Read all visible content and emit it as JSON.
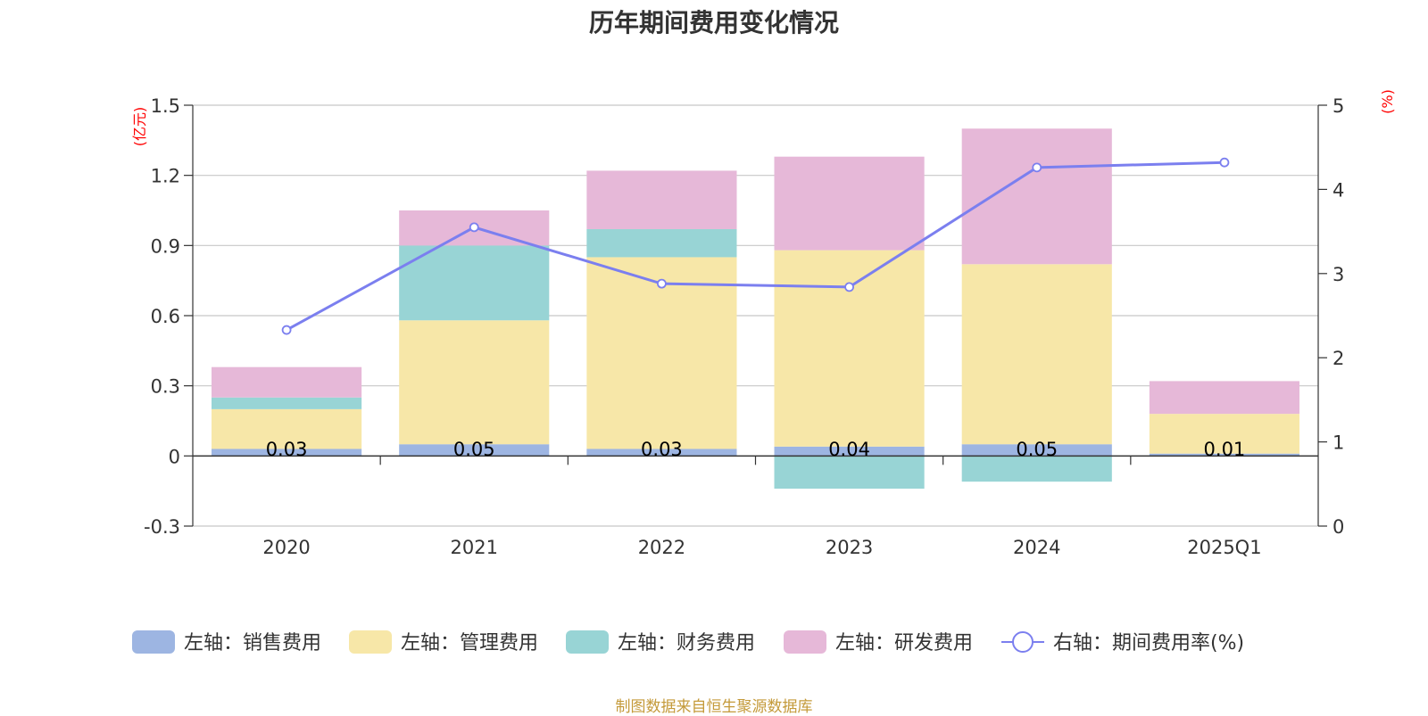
{
  "chart_data": {
    "type": "bar",
    "stacked": true,
    "title": "历年期间费用变化情况",
    "categories": [
      "2020",
      "2021",
      "2022",
      "2023",
      "2024",
      "2025Q1"
    ],
    "left_axis": {
      "unit": "(亿元)",
      "ylim": [
        -0.3,
        1.5
      ],
      "ticks": [
        -0.3,
        0,
        0.3,
        0.6,
        0.9,
        1.2,
        1.5
      ],
      "tick_labels": [
        "-0.3",
        "0",
        "0.3",
        "0.6",
        "0.9",
        "1.2",
        "1.5"
      ]
    },
    "right_axis": {
      "unit": "(%)",
      "ylim": [
        0,
        5
      ],
      "ticks": [
        0,
        1,
        2,
        3,
        4,
        5
      ],
      "tick_labels": [
        "0",
        "1",
        "2",
        "3",
        "4",
        "5"
      ]
    },
    "series": [
      {
        "name": "左轴：销售费用",
        "axis": "left",
        "color": "#9db5e2",
        "values": [
          0.03,
          0.05,
          0.03,
          0.04,
          0.05,
          0.01
        ],
        "labels": [
          "0.03",
          "0.05",
          "0.03",
          "0.04",
          "0.05",
          "0.01"
        ]
      },
      {
        "name": "左轴：管理费用",
        "axis": "left",
        "color": "#f7e7a8",
        "values": [
          0.17,
          0.53,
          0.82,
          0.84,
          0.77,
          0.17
        ]
      },
      {
        "name": "左轴：财务费用",
        "axis": "left",
        "color": "#98d4d5",
        "values": [
          0.05,
          0.32,
          0.12,
          -0.14,
          -0.11,
          0.0
        ]
      },
      {
        "name": "左轴：研发费用",
        "axis": "left",
        "color": "#e6b8d8",
        "values": [
          0.13,
          0.15,
          0.25,
          0.4,
          0.58,
          0.14
        ]
      },
      {
        "name": "右轴：期间费用率(%)",
        "axis": "right",
        "type": "line",
        "color": "#7b7fef",
        "values": [
          2.33,
          3.55,
          2.88,
          2.84,
          4.26,
          4.32
        ]
      }
    ]
  },
  "source_note": "制图数据来自恒生聚源数据库"
}
